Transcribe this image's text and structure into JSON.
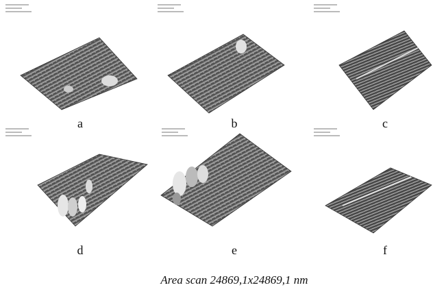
{
  "panels": [
    {
      "label": "a"
    },
    {
      "label": "b"
    },
    {
      "label": "c"
    },
    {
      "label": "d"
    },
    {
      "label": "e"
    },
    {
      "label": "f"
    }
  ],
  "caption": "Area scan 24869,1x24869,1 nm"
}
